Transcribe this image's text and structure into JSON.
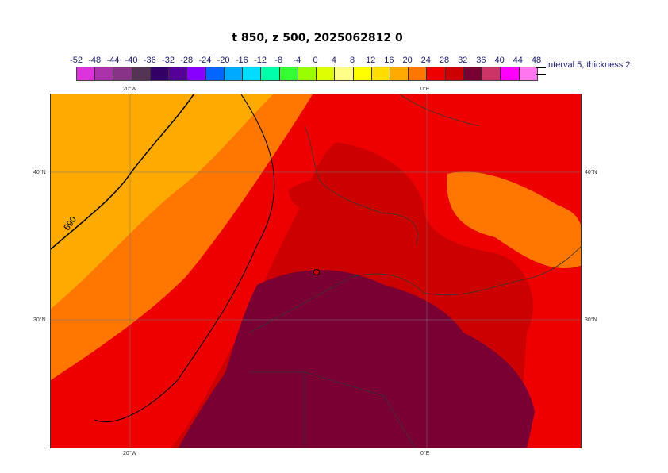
{
  "title": "t 850, z 500, 2025062812 0",
  "legend": {
    "values": [
      "-52",
      "-48",
      "-44",
      "-40",
      "-36",
      "-32",
      "-28",
      "-24",
      "-20",
      "-16",
      "-12",
      "-8",
      "-4",
      "0",
      "4",
      "8",
      "12",
      "16",
      "20",
      "24",
      "28",
      "32",
      "36",
      "40",
      "44",
      "48"
    ],
    "colors": [
      "#dd33dd",
      "#aa33aa",
      "#883388",
      "#553355",
      "#330066",
      "#550099",
      "#8800ff",
      "#0066ff",
      "#00aaff",
      "#00ddff",
      "#00ffaa",
      "#33ff33",
      "#99ff00",
      "#ddff00",
      "#ffff88",
      "#ffff00",
      "#ffdd00",
      "#ffaa00",
      "#ff7700",
      "#ee0000",
      "#cc0000",
      "#7a0033",
      "#cc3366",
      "#ff00ff",
      "#ff77ee",
      "#ffbbee"
    ],
    "note": "Interval 5, thickness 2"
  },
  "map": {
    "contour_label": "590",
    "lat_labels": {
      "n40": "40°N",
      "n30": "30°N"
    },
    "lon_labels": {
      "w20": "20°W",
      "e0": "0°E"
    }
  }
}
